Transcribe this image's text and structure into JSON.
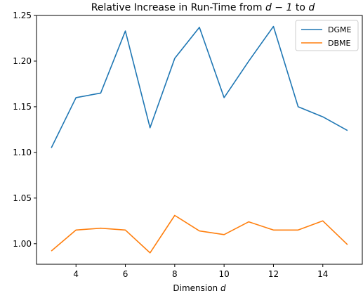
{
  "chart_data": {
    "type": "line",
    "title_prefix": "Relative Increase in Run-Time from ",
    "title_math": "d − 1",
    "title_middle": " to ",
    "title_var": "d",
    "xlabel_prefix": "Dimension ",
    "xlabel_var": "d",
    "ylabel": "",
    "x": [
      3,
      4,
      5,
      6,
      7,
      8,
      9,
      10,
      11,
      12,
      13,
      14,
      15
    ],
    "xlim": [
      2.4,
      15.6
    ],
    "ylim": [
      0.9775,
      1.25
    ],
    "xticks": [
      4,
      6,
      8,
      10,
      12,
      14
    ],
    "yticks": [
      1.0,
      1.05,
      1.1,
      1.15,
      1.2,
      1.25
    ],
    "ytick_labels": [
      "1.00",
      "1.05",
      "1.10",
      "1.15",
      "1.20",
      "1.25"
    ],
    "grid": false,
    "legend_position": "top-right",
    "series": [
      {
        "name": "DGME",
        "color": "#1f77b4",
        "values": [
          1.105,
          1.16,
          1.165,
          1.233,
          1.127,
          1.203,
          1.237,
          1.16,
          1.2,
          1.238,
          1.15,
          1.139,
          1.124
        ]
      },
      {
        "name": "DBME",
        "color": "#ff7f0e",
        "values": [
          0.992,
          1.015,
          1.017,
          1.015,
          0.99,
          1.031,
          1.014,
          1.01,
          1.024,
          1.015,
          1.015,
          1.025,
          0.999
        ]
      }
    ]
  }
}
